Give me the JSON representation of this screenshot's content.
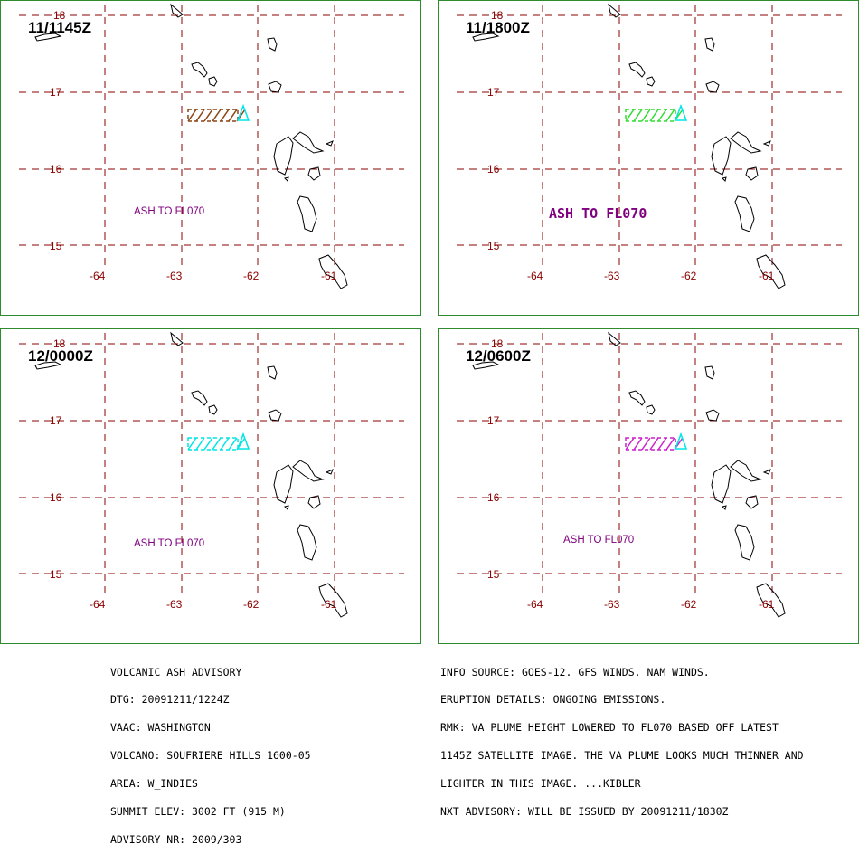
{
  "panels": [
    {
      "time": "11/1145Z",
      "ash_label": "ASH TO FL070",
      "ash_color": "#8b4513",
      "label_color": "#800080",
      "big": false
    },
    {
      "time": "11/1800Z",
      "ash_label": "ASH TO FL070",
      "ash_color": "#33dd33",
      "label_color": "#800080",
      "big": true
    },
    {
      "time": "12/0000Z",
      "ash_label": "ASH TO FL070",
      "ash_color": "#00e5e5",
      "label_color": "#800080",
      "big": false
    },
    {
      "time": "12/0600Z",
      "ash_label": "ASH TO FL070",
      "ash_color": "#cc22cc",
      "label_color": "#800080",
      "big": false
    }
  ],
  "map": {
    "lat_labels": [
      "18",
      "17",
      "16",
      "15"
    ],
    "lon_labels": [
      "-64",
      "-63",
      "-62",
      "-61"
    ],
    "volcano_marker_color": "#00e5e5",
    "grid_color": "#8b0000",
    "border_color": "#2e8b2e"
  },
  "advisory_left": [
    "VOLCANIC ASH ADVISORY",
    "DTG: 20091211/1224Z",
    "VAAC: WASHINGTON",
    "VOLCANO: SOUFRIERE HILLS 1600-05",
    "AREA: W_INDIES",
    "SUMMIT ELEV: 3002 FT (915 M)",
    "ADVISORY NR: 2009/303"
  ],
  "advisory_right": [
    "INFO SOURCE: GOES-12. GFS WINDS. NAM WINDS.",
    "ERUPTION DETAILS: ONGOING EMISSIONS.",
    "RMK: VA PLUME HEIGHT LOWERED TO FL070 BASED OFF LATEST",
    "1145Z SATELLITE IMAGE. THE VA PLUME LOOKS MUCH THINNER AND",
    "LIGHTER IN THIS IMAGE. ...KIBLER",
    "NXT ADVISORY: WILL BE ISSUED BY 20091211/1830Z"
  ]
}
